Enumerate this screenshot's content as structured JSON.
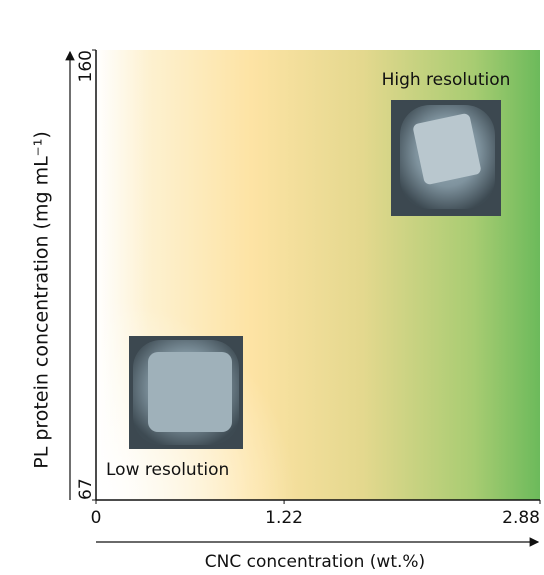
{
  "chart_data": {
    "type": "gradient-map",
    "x_label": "CNC concentration (wt.%)",
    "y_label": "PL protein  concentration (mg mL⁻¹)",
    "xlim": [
      0,
      2.88
    ],
    "xticks": [
      0,
      1.22,
      2.88
    ],
    "ylim": [
      67,
      160
    ],
    "yticks": [
      67,
      160
    ],
    "annotations": [
      "High resolution",
      "Low resolution"
    ]
  }
}
